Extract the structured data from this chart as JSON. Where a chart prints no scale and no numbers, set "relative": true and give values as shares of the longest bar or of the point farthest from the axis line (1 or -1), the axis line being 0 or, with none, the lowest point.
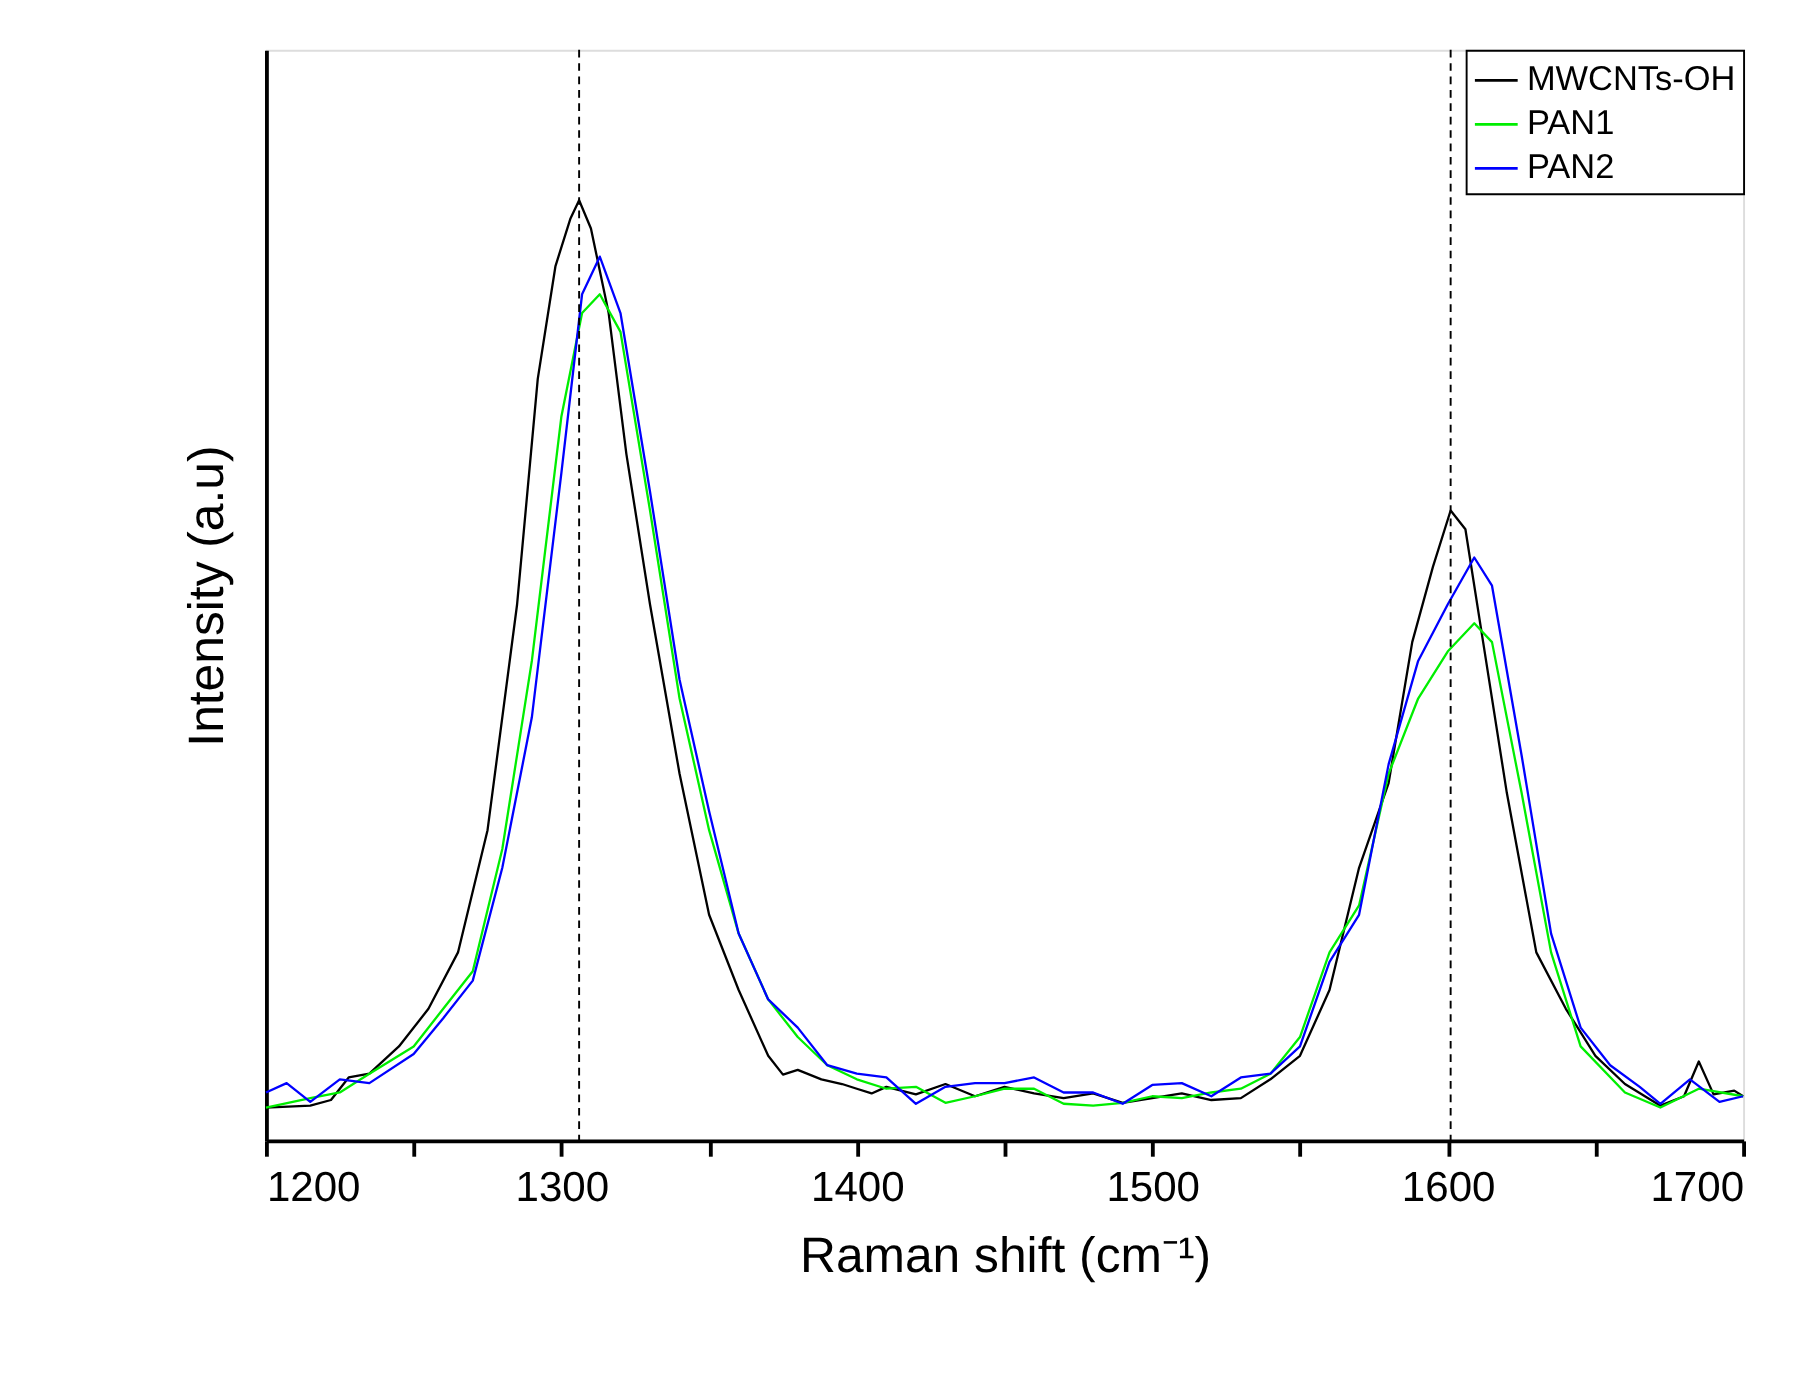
{
  "chart_data": {
    "type": "line",
    "xlabel": "Raman shift (cm⁻¹)",
    "ylabel": "Intensity (a.u)",
    "relative": true,
    "tick_labels": "x",
    "grid": false,
    "legend": "top right",
    "marker": "none",
    "line_style": "solid",
    "xlim": [
      1200,
      1700
    ],
    "xticks": [
      1200,
      {
        "value": 1250,
        "label": null
      },
      1300,
      {
        "value": 1350,
        "label": null
      },
      1400,
      {
        "value": 1450,
        "label": null
      },
      1500,
      {
        "value": 1550,
        "label": null
      },
      1600,
      {
        "value": 1650,
        "label": null
      },
      1700
    ],
    "ref_lines": [
      {
        "axis": "x",
        "value": 1306,
        "color": "#000000",
        "line_style": "dashed"
      },
      {
        "axis": "x",
        "value": 1601,
        "color": "#000000",
        "line_style": "dashed"
      }
    ],
    "series": [
      {
        "name": "MWCNTs-OH",
        "color": "#000000",
        "x": [
          1200,
          1215,
          1222,
          1228,
          1235,
          1245,
          1255,
          1265,
          1275,
          1285,
          1292,
          1298,
          1303,
          1306,
          1310,
          1316,
          1322,
          1330,
          1340,
          1350,
          1360,
          1370,
          1375,
          1380,
          1388,
          1395,
          1400,
          1405,
          1410,
          1420,
          1430,
          1440,
          1450,
          1460,
          1470,
          1480,
          1490,
          1500,
          1510,
          1520,
          1530,
          1540,
          1550,
          1560,
          1570,
          1580,
          1588,
          1595,
          1601,
          1606,
          1612,
          1620,
          1630,
          1640,
          1650,
          1660,
          1672,
          1680,
          1685,
          1690,
          1697,
          1700
        ],
        "values": [
          0.035,
          0.037,
          0.043,
          0.067,
          0.071,
          0.1,
          0.14,
          0.2,
          0.33,
          0.57,
          0.81,
          0.93,
          0.98,
          1.0,
          0.97,
          0.88,
          0.73,
          0.57,
          0.39,
          0.24,
          0.16,
          0.09,
          0.07,
          0.075,
          0.065,
          0.06,
          0.055,
          0.05,
          0.057,
          0.049,
          0.06,
          0.047,
          0.057,
          0.05,
          0.045,
          0.05,
          0.04,
          0.045,
          0.05,
          0.043,
          0.045,
          0.065,
          0.09,
          0.16,
          0.29,
          0.38,
          0.53,
          0.61,
          0.67,
          0.65,
          0.53,
          0.37,
          0.2,
          0.14,
          0.09,
          0.06,
          0.037,
          0.047,
          0.084,
          0.049,
          0.053,
          0.047
        ]
      },
      {
        "name": "PAN1",
        "color": "#00ee00",
        "x": [
          1200,
          1215,
          1225,
          1235,
          1250,
          1260,
          1270,
          1280,
          1290,
          1300,
          1307,
          1313,
          1320,
          1330,
          1340,
          1350,
          1360,
          1370,
          1380,
          1390,
          1400,
          1410,
          1420,
          1430,
          1440,
          1450,
          1460,
          1470,
          1480,
          1490,
          1500,
          1510,
          1520,
          1530,
          1540,
          1550,
          1560,
          1570,
          1580,
          1590,
          1600,
          1609,
          1615,
          1625,
          1635,
          1645,
          1660,
          1672,
          1685,
          1700
        ],
        "values": [
          0.035,
          0.045,
          0.051,
          0.071,
          0.1,
          0.14,
          0.18,
          0.31,
          0.51,
          0.77,
          0.88,
          0.9,
          0.86,
          0.67,
          0.47,
          0.33,
          0.22,
          0.15,
          0.11,
          0.08,
          0.065,
          0.055,
          0.057,
          0.04,
          0.047,
          0.055,
          0.055,
          0.039,
          0.037,
          0.04,
          0.047,
          0.045,
          0.051,
          0.055,
          0.071,
          0.11,
          0.2,
          0.25,
          0.39,
          0.47,
          0.52,
          0.55,
          0.53,
          0.37,
          0.2,
          0.1,
          0.051,
          0.035,
          0.055,
          0.047
        ]
      },
      {
        "name": "PAN2",
        "color": "#0000ff",
        "x": [
          1200,
          1207,
          1215,
          1225,
          1235,
          1250,
          1260,
          1270,
          1280,
          1290,
          1300,
          1307,
          1313,
          1320,
          1330,
          1340,
          1350,
          1360,
          1370,
          1380,
          1390,
          1400,
          1410,
          1420,
          1430,
          1440,
          1450,
          1460,
          1470,
          1480,
          1490,
          1500,
          1510,
          1520,
          1530,
          1540,
          1550,
          1560,
          1570,
          1580,
          1590,
          1600,
          1609,
          1615,
          1625,
          1635,
          1645,
          1655,
          1665,
          1672,
          1682,
          1692,
          1700
        ],
        "values": [
          0.051,
          0.061,
          0.041,
          0.065,
          0.061,
          0.092,
          0.13,
          0.17,
          0.29,
          0.45,
          0.71,
          0.9,
          0.94,
          0.88,
          0.69,
          0.49,
          0.35,
          0.22,
          0.15,
          0.12,
          0.08,
          0.071,
          0.067,
          0.039,
          0.057,
          0.061,
          0.061,
          0.067,
          0.051,
          0.051,
          0.039,
          0.059,
          0.061,
          0.047,
          0.067,
          0.071,
          0.1,
          0.19,
          0.24,
          0.4,
          0.51,
          0.57,
          0.62,
          0.59,
          0.41,
          0.22,
          0.12,
          0.08,
          0.057,
          0.039,
          0.065,
          0.041,
          0.047
        ]
      }
    ]
  }
}
